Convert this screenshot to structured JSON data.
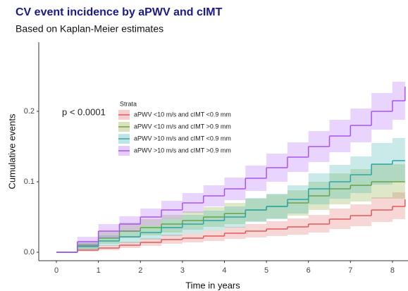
{
  "chart_data": {
    "type": "step",
    "title": "CV event incidence by aPWV and cIMT",
    "subtitle": "Based on Kaplan-Meier estimates",
    "xlabel": "Time in years",
    "ylabel": "Cumulative events",
    "annotation": "p < 0.0001",
    "legend_title": "Strata",
    "legend": "upper left",
    "grid": false,
    "xlim": [
      -0.42,
      8.37
    ],
    "ylim": [
      -0.012,
      0.298
    ],
    "xticks": [
      0,
      1,
      2,
      3,
      4,
      5,
      6,
      7,
      8
    ],
    "yticks": [
      {
        "value": 0,
        "label": "0.0"
      },
      0.1,
      0.2
    ],
    "x": [
      0,
      0.5,
      1,
      1.5,
      2,
      2.5,
      3,
      3.5,
      4,
      4.5,
      5,
      5.5,
      6,
      6.5,
      7,
      7.5,
      8,
      8.3
    ],
    "series": [
      {
        "name": "aPWV <10 m/s and cIMT <0.9 mm",
        "color": "#e05a5a",
        "values": [
          0,
          0.003,
          0.006,
          0.01,
          0.014,
          0.018,
          0.02,
          0.023,
          0.027,
          0.03,
          0.033,
          0.036,
          0.04,
          0.047,
          0.052,
          0.06,
          0.065,
          0.075
        ],
        "lower": [
          0,
          0.001,
          0.003,
          0.006,
          0.009,
          0.012,
          0.014,
          0.016,
          0.019,
          0.021,
          0.023,
          0.025,
          0.028,
          0.033,
          0.037,
          0.043,
          0.047,
          0.055
        ],
        "upper": [
          0,
          0.006,
          0.01,
          0.015,
          0.02,
          0.025,
          0.027,
          0.031,
          0.036,
          0.04,
          0.044,
          0.048,
          0.053,
          0.062,
          0.068,
          0.078,
          0.085,
          0.097
        ]
      },
      {
        "name": "aPWV <10 m/s and cIMT >0.9 mm",
        "color": "#7aa329",
        "values": [
          0,
          0.01,
          0.02,
          0.03,
          0.035,
          0.04,
          0.045,
          0.05,
          0.055,
          0.06,
          0.065,
          0.07,
          0.08,
          0.09,
          0.095,
          0.1,
          0.1,
          0.1
        ],
        "lower": [
          0,
          0.005,
          0.012,
          0.02,
          0.024,
          0.028,
          0.032,
          0.036,
          0.04,
          0.044,
          0.048,
          0.052,
          0.06,
          0.068,
          0.072,
          0.076,
          0.076,
          0.076
        ],
        "upper": [
          0,
          0.016,
          0.03,
          0.042,
          0.047,
          0.053,
          0.058,
          0.064,
          0.07,
          0.076,
          0.082,
          0.088,
          0.1,
          0.112,
          0.118,
          0.125,
          0.125,
          0.125
        ]
      },
      {
        "name": "aPWV >10 m/s and cIMT <0.9 mm",
        "color": "#2aa6a6",
        "values": [
          0,
          0.008,
          0.016,
          0.022,
          0.028,
          0.035,
          0.04,
          0.045,
          0.05,
          0.06,
          0.065,
          0.075,
          0.09,
          0.1,
          0.11,
          0.125,
          0.13,
          0.13
        ],
        "lower": [
          0,
          0.003,
          0.009,
          0.013,
          0.018,
          0.023,
          0.027,
          0.031,
          0.035,
          0.043,
          0.047,
          0.055,
          0.068,
          0.076,
          0.084,
          0.096,
          0.1,
          0.1
        ],
        "upper": [
          0,
          0.013,
          0.024,
          0.031,
          0.038,
          0.047,
          0.053,
          0.059,
          0.065,
          0.077,
          0.083,
          0.095,
          0.112,
          0.124,
          0.136,
          0.155,
          0.162,
          0.165
        ]
      },
      {
        "name": "aPWV >10 m/s and cIMT >0.9 mm",
        "color": "#a855f7",
        "values": [
          0,
          0.015,
          0.03,
          0.04,
          0.05,
          0.06,
          0.07,
          0.08,
          0.09,
          0.105,
          0.12,
          0.135,
          0.15,
          0.165,
          0.18,
          0.2,
          0.215,
          0.235
        ],
        "lower": [
          0,
          0.008,
          0.02,
          0.029,
          0.038,
          0.047,
          0.056,
          0.065,
          0.074,
          0.087,
          0.1,
          0.114,
          0.128,
          0.142,
          0.156,
          0.174,
          0.188,
          0.205
        ],
        "upper": [
          0,
          0.022,
          0.04,
          0.051,
          0.062,
          0.073,
          0.084,
          0.095,
          0.106,
          0.123,
          0.14,
          0.156,
          0.172,
          0.188,
          0.204,
          0.226,
          0.242,
          0.265
        ]
      }
    ]
  }
}
